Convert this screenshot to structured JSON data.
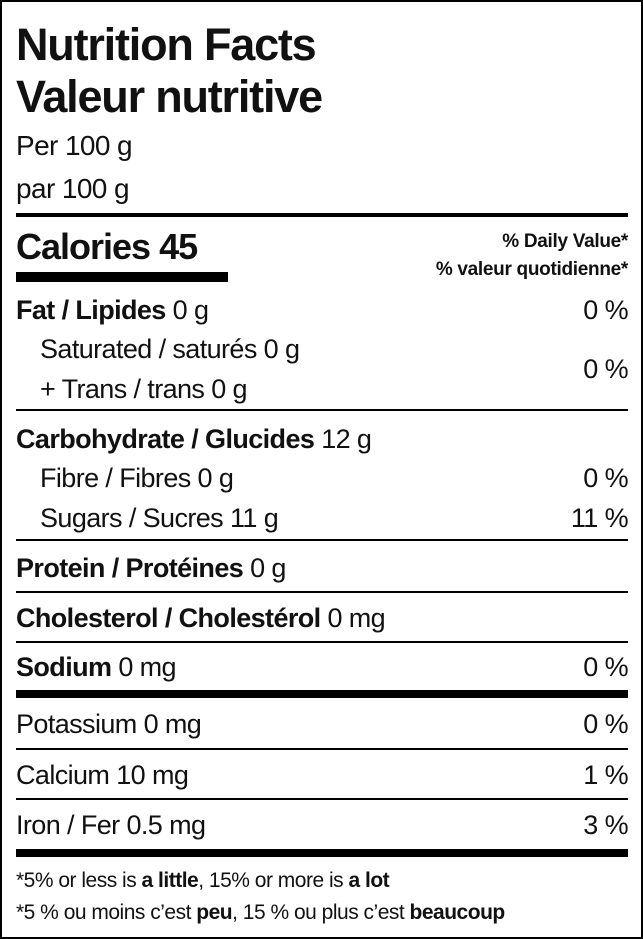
{
  "title_en": "Nutrition Facts",
  "title_fr": "Valeur nutritive",
  "serving_en": "Per 100 g",
  "serving_fr": "par 100 g",
  "calories_label": "Calories",
  "calories_value": "45",
  "dv_en": "% Daily Value*",
  "dv_fr": "% valeur quotidienne*",
  "fat": {
    "label": "Fat / Lipides",
    "amount": "0 g",
    "dv": "0 %"
  },
  "saturated": {
    "label": "Saturated / saturés",
    "amount": "0 g"
  },
  "trans": {
    "label": "+ Trans / trans",
    "amount": "0 g",
    "dv": "0 %"
  },
  "carbohydrate": {
    "label": "Carbohydrate / Glucides",
    "amount": "12 g"
  },
  "fibre": {
    "label": "Fibre / Fibres",
    "amount": "0 g",
    "dv": "0 %"
  },
  "sugars": {
    "label": "Sugars / Sucres",
    "amount": "11 g",
    "dv": "11 %"
  },
  "protein": {
    "label": "Protein / Protéines",
    "amount": "0 g"
  },
  "cholesterol": {
    "label": "Cholesterol / Cholestérol",
    "amount": "0 mg"
  },
  "sodium": {
    "label": "Sodium",
    "amount": "0 mg",
    "dv": "0 %"
  },
  "potassium": {
    "label": "Potassium",
    "amount": "0 mg",
    "dv": "0 %"
  },
  "calcium": {
    "label": "Calcium",
    "amount": "10 mg",
    "dv": "1 %"
  },
  "iron": {
    "label": "Iron / Fer",
    "amount": "0.5 mg",
    "dv": "3 %"
  },
  "footnote_en": {
    "a": "*5% or less is ",
    "b": "a little",
    "c": ", 15% or more is ",
    "d": "a lot"
  },
  "footnote_fr": {
    "a": "*5 % ou moins c’est ",
    "b": "peu",
    "c": ", 15 % ou plus c’est ",
    "d": "beaucoup"
  }
}
